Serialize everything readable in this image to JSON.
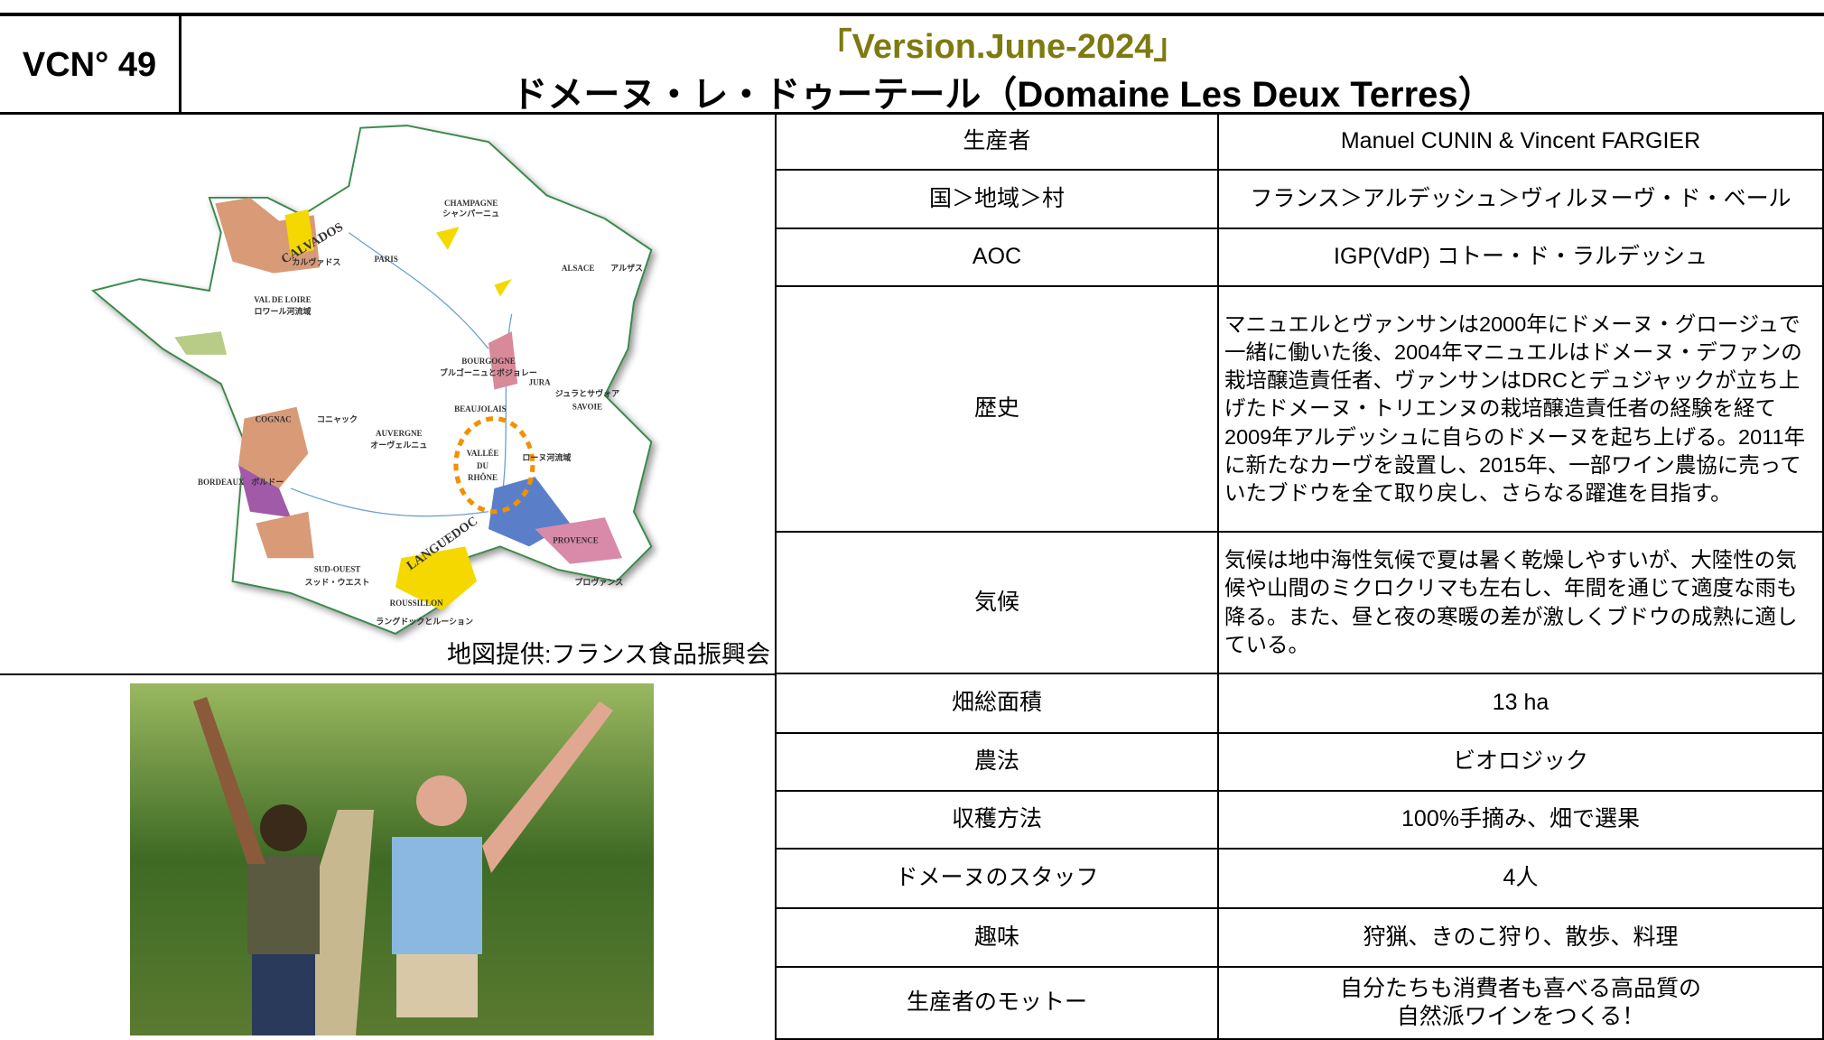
{
  "header": {
    "code": "VCN° 49",
    "version": "「Version.June-2024」",
    "title": "ドメーヌ・レ・ドゥーテール（Domaine Les Deux Terres）"
  },
  "map": {
    "labels": [
      "CHAMPAGNE",
      "シャンパーニュ",
      "CALVADOS",
      "カルヴァドス",
      "PARIS",
      "ALSACE",
      "アルザス",
      "VAL  DE  LOIRE",
      "ロワール河流域",
      "BOURGOGNE",
      "ブルゴーニュとボジョレー",
      "JURA",
      "ジュラとサヴォア",
      "SAVOIE",
      "BEAUJOLAIS",
      "COGNAC",
      "コニャック",
      "AUVERGNE",
      "オーヴェルニュ",
      "VALLÉE",
      "DU",
      "RHÔNE",
      "ローヌ河流域",
      "BORDEAUX",
      "ボルドー",
      "LANGUEDOC",
      "PROVENCE",
      "プロヴァンス",
      "SUD-OUEST",
      "スッド・ウエスト",
      "ROUSSILLON",
      "ラングドックとルーション"
    ],
    "credit": "地図提供:フランス食品振興会"
  },
  "table": {
    "rows": [
      [
        "生産者",
        "Manuel CUNIN & Vincent FARGIER"
      ],
      [
        "国＞地域＞村",
        "フランス＞アルデッシュ＞ヴィルヌーヴ・ド・ベール"
      ],
      [
        "AOC",
        "IGP(VdP) コトー・ド・ラルデッシュ"
      ],
      [
        "歴史",
        "マニュエルとヴァンサンは2000年にドメーヌ・グロージュで一緒に働いた後、2004年マニュエルはドメーヌ・デファンの栽培醸造責任者、ヴァンサンはDRCとデュジャックが立ち上げたドメーヌ・トリエンヌの栽培醸造責任者の経験を経て2009年アルデッシュに自らのドメーヌを起ち上げる。2011年に新たなカーヴを設置し、2015年、一部ワイン農協に売っていたブドウを全て取り戻し、さらなる躍進を目指す。"
      ],
      [
        "気候",
        "気候は地中海性気候で夏は暑く乾燥しやすいが、大陸性の気候や山間のミクロクリマも左右し、年間を通じて適度な雨も降る。また、昼と夜の寒暖の差が激しくブドウの成熟に適している。"
      ],
      [
        "畑総面積",
        "13 ha"
      ],
      [
        "農法",
        "ビオロジック"
      ],
      [
        "収穫方法",
        "100%手摘み、畑で選果"
      ],
      [
        "ドメーヌのスタッフ",
        "4人"
      ],
      [
        "趣味",
        "狩猟、きのこ狩り、散歩、料理"
      ],
      [
        "生産者のモットー",
        "自分たちも消費者も喜べる高品質の\n自然派ワインをつくる！"
      ]
    ]
  }
}
